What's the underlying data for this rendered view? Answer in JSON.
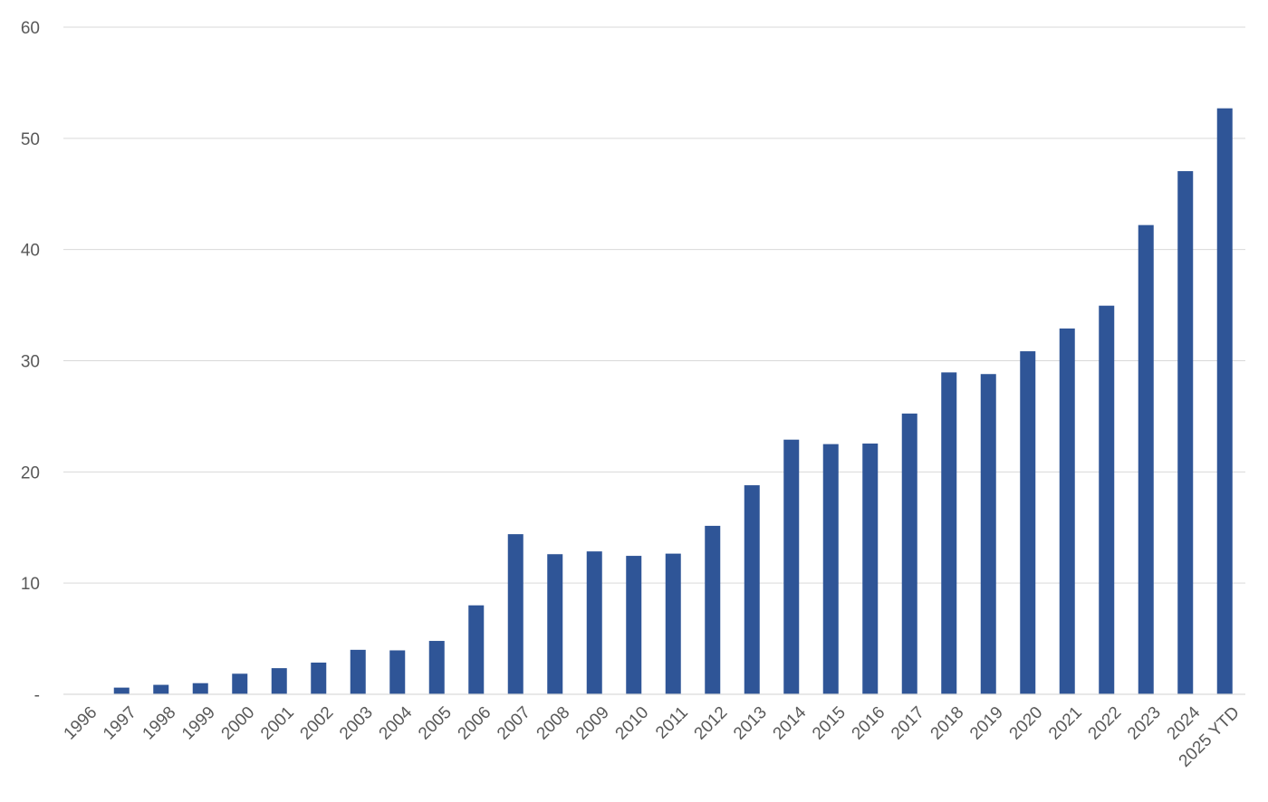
{
  "chart_data": {
    "type": "bar",
    "title": "",
    "xlabel": "",
    "ylabel": "",
    "categories": [
      "1996",
      "1997",
      "1998",
      "1999",
      "2000",
      "2001",
      "2002",
      "2003",
      "2004",
      "2005",
      "2006",
      "2007",
      "2008",
      "2009",
      "2010",
      "2011",
      "2012",
      "2013",
      "2014",
      "2015",
      "2016",
      "2017",
      "2018",
      "2019",
      "2020",
      "2021",
      "2022",
      "2023",
      "2024",
      "2025 YTD"
    ],
    "values": [
      0,
      0.6,
      0.85,
      1.0,
      1.85,
      2.35,
      2.85,
      4.0,
      3.95,
      4.8,
      8.0,
      14.4,
      12.6,
      12.85,
      12.45,
      12.65,
      15.15,
      18.8,
      22.9,
      22.5,
      22.55,
      25.25,
      28.95,
      28.8,
      30.85,
      32.9,
      34.95,
      42.2,
      47.05,
      52.7
    ],
    "ylim": [
      0,
      60
    ],
    "yticks": [
      "-",
      "10",
      "20",
      "30",
      "40",
      "50",
      "60"
    ],
    "grid": true,
    "legend": "none",
    "bar_color": "#2f5597",
    "grid_color": "#d9d9d9",
    "axis_color": "#d9d9d9",
    "label_color": "#595959"
  }
}
